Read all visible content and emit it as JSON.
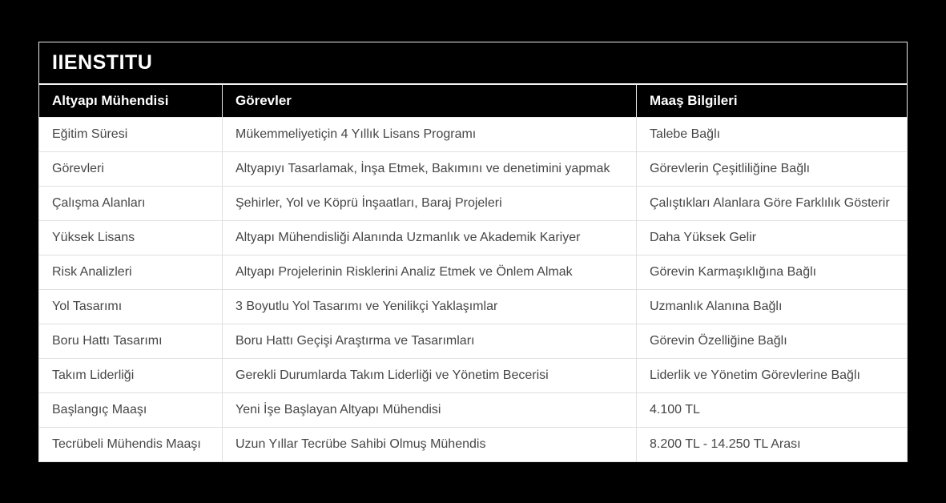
{
  "page": {
    "background_color": "#000000"
  },
  "table": {
    "title": "IIENSTITU",
    "columns": [
      "Altyapı Mühendisi",
      "Görevler",
      "Maaş Bilgileri"
    ],
    "rows": [
      [
        "Eğitim Süresi",
        "Mükemmeliyetiçin 4 Yıllık Lisans Programı",
        "Talebe Bağlı"
      ],
      [
        "Görevleri",
        "Altyapıyı Tasarlamak, İnşa Etmek, Bakımını ve denetimini yapmak",
        "Görevlerin Çeşitliliğine Bağlı"
      ],
      [
        "Çalışma Alanları",
        "Şehirler, Yol ve Köprü İnşaatları, Baraj Projeleri",
        "Çalıştıkları Alanlara Göre Farklılık Gösterir"
      ],
      [
        "Yüksek Lisans",
        "Altyapı Mühendisliği Alanında Uzmanlık ve Akademik Kariyer",
        "Daha Yüksek Gelir"
      ],
      [
        "Risk Analizleri",
        "Altyapı Projelerinin Risklerini Analiz Etmek ve Önlem Almak",
        "Görevin Karmaşıklığına Bağlı"
      ],
      [
        "Yol Tasarımı",
        "3 Boyutlu Yol Tasarımı ve Yenilikçi Yaklaşımlar",
        "Uzmanlık Alanına Bağlı"
      ],
      [
        "Boru Hattı Tasarımı",
        "Boru Hattı Geçişi Araştırma ve Tasarımları",
        "Görevin Özelliğine Bağlı"
      ],
      [
        "Takım Liderliği",
        "Gerekli Durumlarda Takım Liderliği ve Yönetim Becerisi",
        "Liderlik ve Yönetim Görevlerine Bağlı"
      ],
      [
        "Başlangıç Maaşı",
        "Yeni İşe Başlayan Altyapı Mühendisi",
        "4.100 TL"
      ],
      [
        "Tecrübeli Mühendis Maaşı",
        "Uzun Yıllar Tecrübe Sahibi Olmuş Mühendis",
        "8.200 TL - 14.250 TL Arası"
      ]
    ],
    "colors": {
      "header_background": "#000000",
      "header_text": "#ffffff",
      "row_background": "#ffffff",
      "row_text": "#474747",
      "cell_border": "#e0e0e0",
      "page_background": "#000000"
    }
  }
}
